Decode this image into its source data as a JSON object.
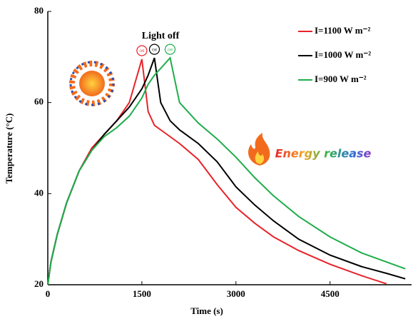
{
  "chart_data": {
    "type": "line",
    "x_label": "Time (s)",
    "y_label": "Temperature (°C)",
    "annotations": [
      "Light off",
      "Energy release"
    ],
    "peak_labels": [
      "Off",
      "Off",
      "Off"
    ],
    "xlim": [
      0,
      5800
    ],
    "ylim": [
      20,
      80
    ],
    "xticks": [
      0,
      1500,
      3000,
      4500
    ],
    "yticks": [
      20,
      40,
      60,
      80
    ],
    "legend": "upper right",
    "x": [
      0,
      50,
      150,
      300,
      500,
      700,
      900,
      1100,
      1300,
      1500,
      1600,
      1700,
      1800,
      1950,
      2100,
      2400,
      2700,
      3000,
      3300,
      3600,
      4000,
      4500,
      5000,
      5400,
      5700
    ],
    "series": [
      {
        "name": "I=1100 W m⁻²",
        "color": "#e8232a",
        "values": [
          20,
          25,
          31,
          38,
          45,
          50,
          53,
          56,
          60,
          69.5,
          58,
          55,
          54,
          52.5,
          51,
          47.5,
          42,
          37,
          33.5,
          30.5,
          27.5,
          24.5,
          22,
          20.2,
          null
        ]
      },
      {
        "name": "I=1000 W m⁻²",
        "color": "#000000",
        "values": [
          20,
          25,
          31,
          38,
          45,
          49.5,
          53,
          56,
          59,
          63,
          66,
          69.8,
          60,
          56,
          54,
          51,
          47,
          41.5,
          37.5,
          34,
          30,
          26.5,
          24,
          22.5,
          21.3
        ]
      },
      {
        "name": "I=900 W m⁻²",
        "color": "#1fad4b",
        "values": [
          20,
          25,
          31,
          38,
          45,
          49.5,
          52.5,
          54.5,
          57,
          61,
          64,
          66,
          67.5,
          69.8,
          60,
          55.5,
          52,
          48,
          43.5,
          39.5,
          35,
          30.5,
          27,
          25,
          23.5
        ]
      }
    ]
  }
}
